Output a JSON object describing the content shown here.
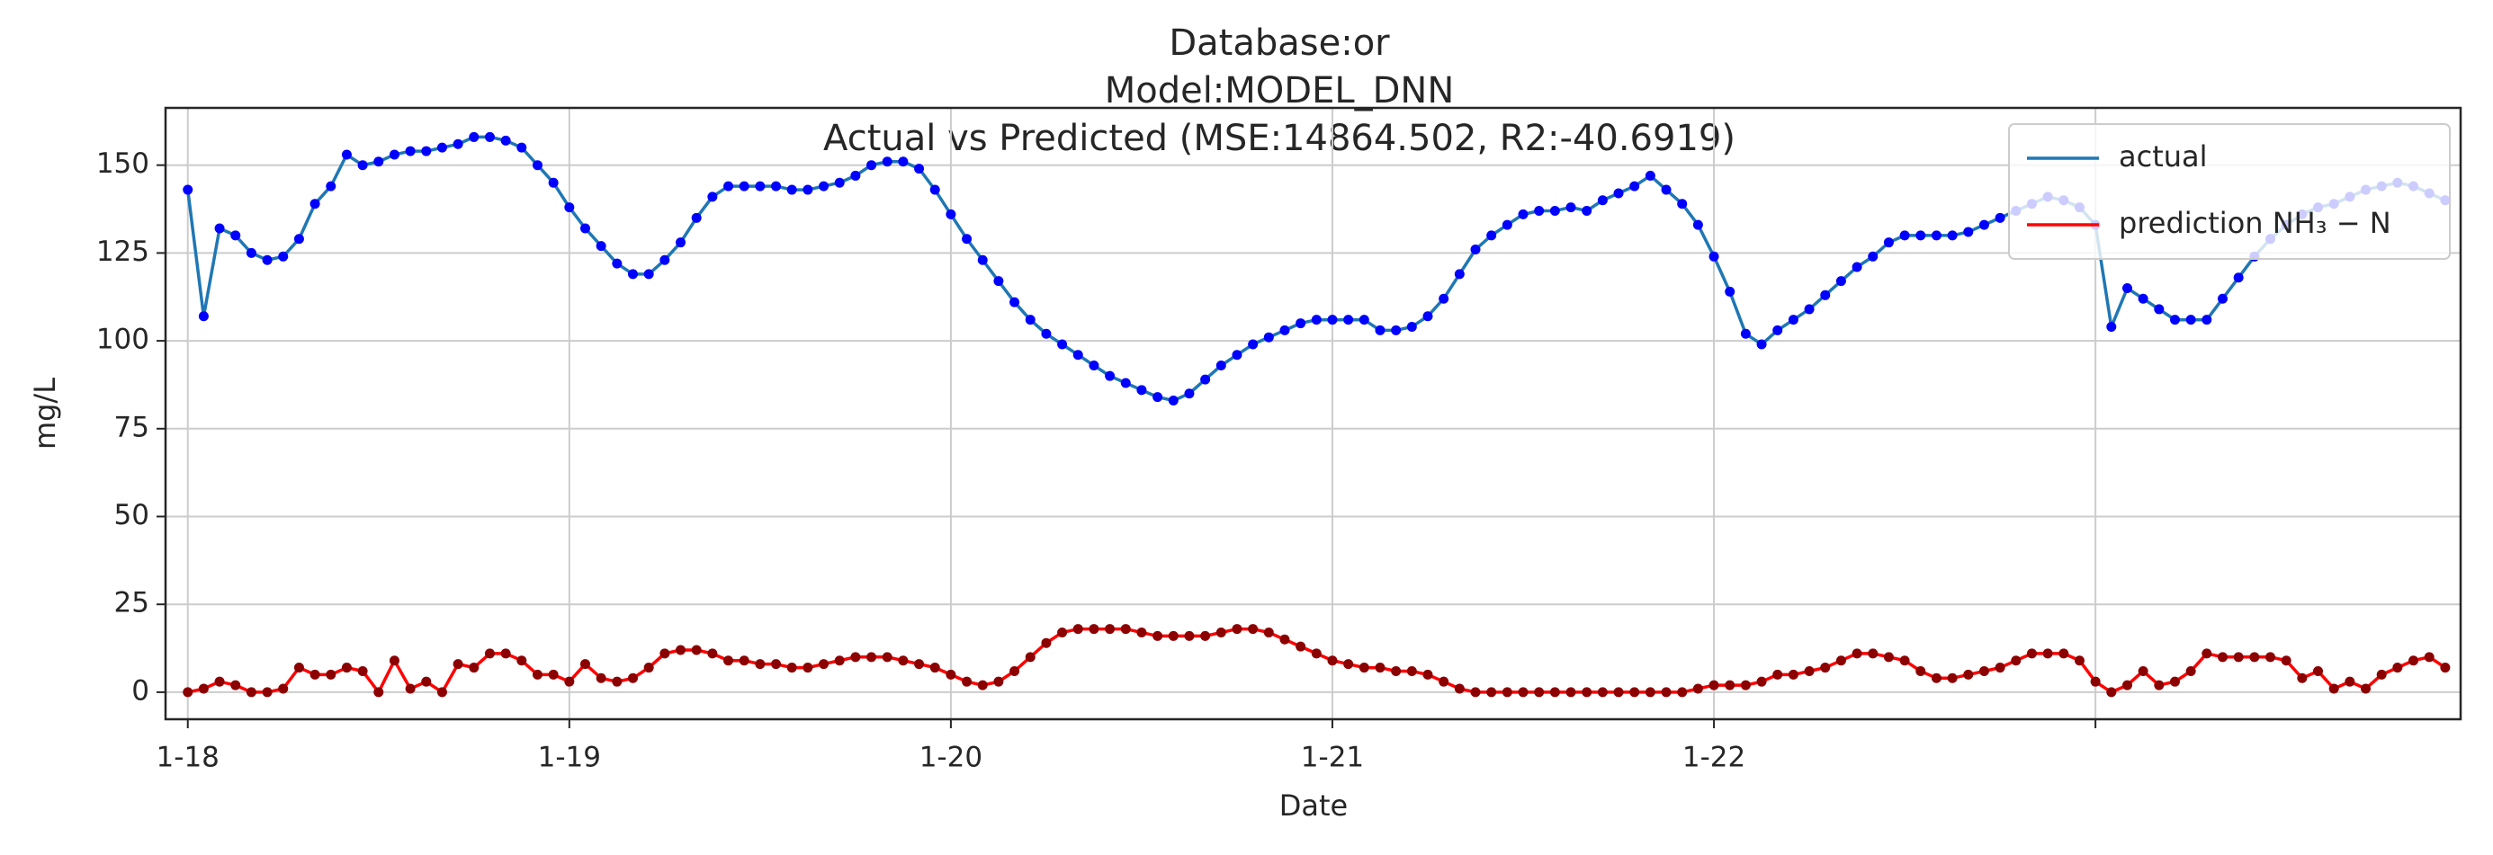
{
  "chart_data": {
    "type": "line",
    "title": [
      "Database:or",
      "Model:MODEL_DNN",
      "Actual vs Predicted (MSE:14864.502, R2:-40.6919)"
    ],
    "x_label": "Date",
    "y_label": "mg/L",
    "categories": [
      "1-18",
      null,
      null,
      null,
      null,
      null,
      null,
      null,
      null,
      null,
      null,
      null,
      null,
      null,
      null,
      null,
      null,
      null,
      null,
      null,
      null,
      null,
      null,
      null,
      "1-19",
      null,
      null,
      null,
      null,
      null,
      null,
      null,
      null,
      null,
      null,
      null,
      null,
      null,
      null,
      null,
      null,
      null,
      null,
      null,
      null,
      null,
      null,
      null,
      "1-20",
      null,
      null,
      null,
      null,
      null,
      null,
      null,
      null,
      null,
      null,
      null,
      null,
      null,
      null,
      null,
      null,
      null,
      null,
      null,
      null,
      null,
      null,
      null,
      "1-21",
      null,
      null,
      null,
      null,
      null,
      null,
      null,
      null,
      null,
      null,
      null,
      null,
      null,
      null,
      null,
      null,
      null,
      null,
      null,
      null,
      null,
      null,
      null,
      "1-22",
      null,
      null,
      null,
      null,
      null,
      null,
      null,
      null,
      null,
      null,
      null,
      null,
      null,
      null,
      null,
      null,
      null,
      null,
      null,
      null,
      null,
      null,
      null,
      null,
      null,
      null,
      null,
      null,
      null,
      null,
      null,
      null,
      null,
      null,
      null,
      null,
      null,
      null,
      null,
      null,
      null,
      null,
      null,
      null,
      null,
      null
    ],
    "series": [
      {
        "name": "actual",
        "color": "#1f77b4",
        "marker_color": "#0000ff",
        "values": [
          143,
          107,
          132,
          130,
          125,
          123,
          124,
          129,
          139,
          144,
          153,
          150,
          151,
          153,
          154,
          154,
          155,
          156,
          158,
          158,
          157,
          155,
          150,
          145,
          138,
          132,
          127,
          122,
          119,
          119,
          123,
          128,
          135,
          141,
          144,
          144,
          144,
          144,
          143,
          143,
          144,
          145,
          147,
          150,
          151,
          151,
          149,
          143,
          136,
          129,
          123,
          117,
          111,
          106,
          102,
          99,
          96,
          93,
          90,
          88,
          86,
          84,
          83,
          85,
          89,
          93,
          96,
          99,
          101,
          103,
          105,
          106,
          106,
          106,
          106,
          103,
          103,
          104,
          107,
          112,
          119,
          126,
          130,
          133,
          136,
          137,
          137,
          138,
          137,
          140,
          142,
          144,
          147,
          143,
          139,
          133,
          124,
          114,
          102,
          99,
          103,
          106,
          109,
          113,
          117,
          121,
          124,
          128,
          130,
          130,
          130,
          130,
          131,
          133,
          135,
          137,
          139,
          141,
          140,
          138,
          133,
          104,
          115,
          112,
          109,
          106,
          106,
          106,
          112,
          118,
          124,
          129,
          133,
          136,
          138,
          139,
          141,
          143,
          144,
          145,
          144,
          142,
          140
        ]
      },
      {
        "name": "prediction NH₃ − N",
        "color": "#ff0000",
        "marker_color": "#8b0000",
        "values": [
          0,
          1,
          3,
          2,
          0,
          0,
          1,
          7,
          5,
          5,
          7,
          6,
          0,
          9,
          1,
          3,
          0,
          8,
          7,
          11,
          11,
          9,
          5,
          5,
          3,
          8,
          4,
          3,
          4,
          7,
          11,
          12,
          12,
          11,
          9,
          9,
          8,
          8,
          7,
          7,
          8,
          9,
          10,
          10,
          10,
          9,
          8,
          7,
          5,
          3,
          2,
          3,
          6,
          10,
          14,
          17,
          18,
          18,
          18,
          18,
          17,
          16,
          16,
          16,
          16,
          17,
          18,
          18,
          17,
          15,
          13,
          11,
          9,
          8,
          7,
          7,
          6,
          6,
          5,
          3,
          1,
          0,
          0,
          0,
          0,
          0,
          0,
          0,
          0,
          0,
          0,
          0,
          0,
          0,
          0,
          1,
          2,
          2,
          2,
          3,
          5,
          5,
          6,
          7,
          9,
          11,
          11,
          10,
          9,
          6,
          4,
          4,
          5,
          6,
          7,
          9,
          11,
          11,
          11,
          9,
          3,
          0,
          2,
          6,
          2,
          3,
          6,
          11,
          10,
          10,
          10,
          10,
          9,
          4,
          6,
          1,
          3,
          1,
          5,
          7,
          9,
          10,
          7
        ]
      }
    ],
    "ylim": [
      -7.7,
      166.3
    ],
    "yticks": [
      0,
      25,
      50,
      75,
      100,
      125,
      150
    ],
    "grid": true,
    "legend": "upper right"
  }
}
